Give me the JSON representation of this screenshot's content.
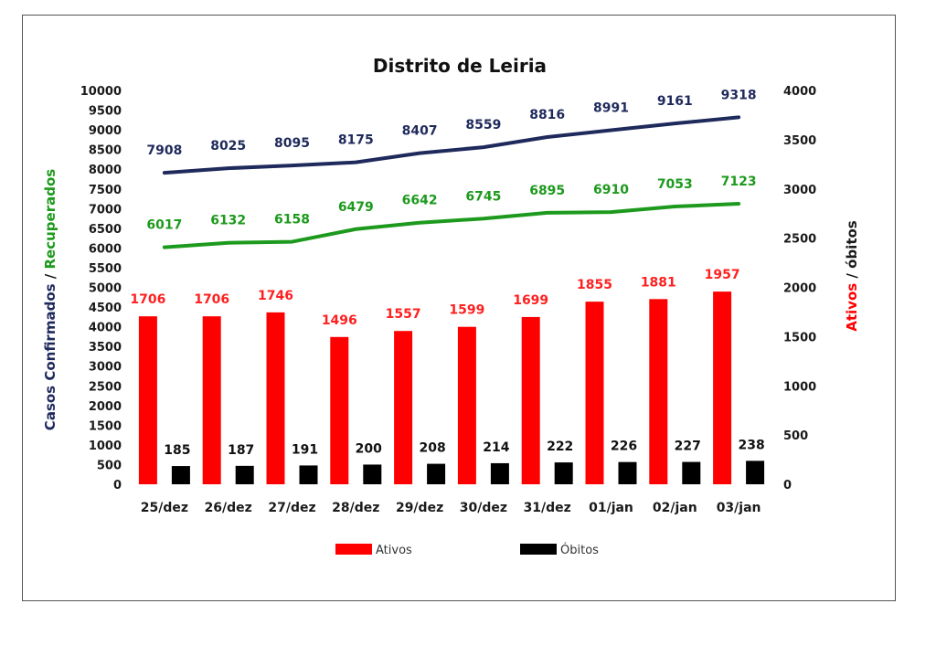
{
  "chart_data": {
    "type": "bar",
    "title": "Distrito de Leiria",
    "categories": [
      "25/dez",
      "26/dez",
      "27/dez",
      "28/dez",
      "29/dez",
      "30/dez",
      "31/dez",
      "01/jan",
      "02/jan",
      "03/jan"
    ],
    "left_axis": {
      "label_part1": "Casos Confirmados",
      "label_sep": " / ",
      "label_part2": "Recuperados",
      "ylim": [
        0,
        10000
      ],
      "ticks": [
        0,
        500,
        1000,
        1500,
        2000,
        2500,
        3000,
        3500,
        4000,
        4500,
        5000,
        5500,
        6000,
        6500,
        7000,
        7500,
        8000,
        8500,
        9000,
        9500,
        10000
      ]
    },
    "right_axis": {
      "label_part1": "Ativos",
      "label_sep": " / ",
      "label_part2": "óbitos",
      "ylim": [
        0,
        4000
      ],
      "ticks": [
        0,
        500,
        1000,
        1500,
        2000,
        2500,
        3000,
        3500,
        4000
      ]
    },
    "lines": [
      {
        "values": [
          7908,
          8025,
          8095,
          8175,
          8407,
          8559,
          8816,
          8991,
          9161,
          9318
        ],
        "color": "#1f2a5c",
        "axis": "left"
      },
      {
        "values": [
          6017,
          6132,
          6158,
          6479,
          6642,
          6745,
          6895,
          6910,
          7053,
          7123
        ],
        "color": "#1d9a1d",
        "axis": "left"
      }
    ],
    "series": [
      {
        "name": "Ativos",
        "values": [
          1706,
          1706,
          1746,
          1496,
          1557,
          1599,
          1699,
          1855,
          1881,
          1957
        ],
        "color": "#ff0000",
        "axis": "right"
      },
      {
        "name": "Óbitos",
        "values": [
          185,
          187,
          191,
          200,
          208,
          214,
          222,
          226,
          227,
          238
        ],
        "color": "#000000",
        "axis": "right"
      }
    ],
    "legend_position": "bottom",
    "grid": false,
    "colors": {
      "confirmados": "#1f2a5c",
      "recuperados": "#1d9a1d",
      "ativos": "#ff0000",
      "obitos": "#000000"
    }
  }
}
